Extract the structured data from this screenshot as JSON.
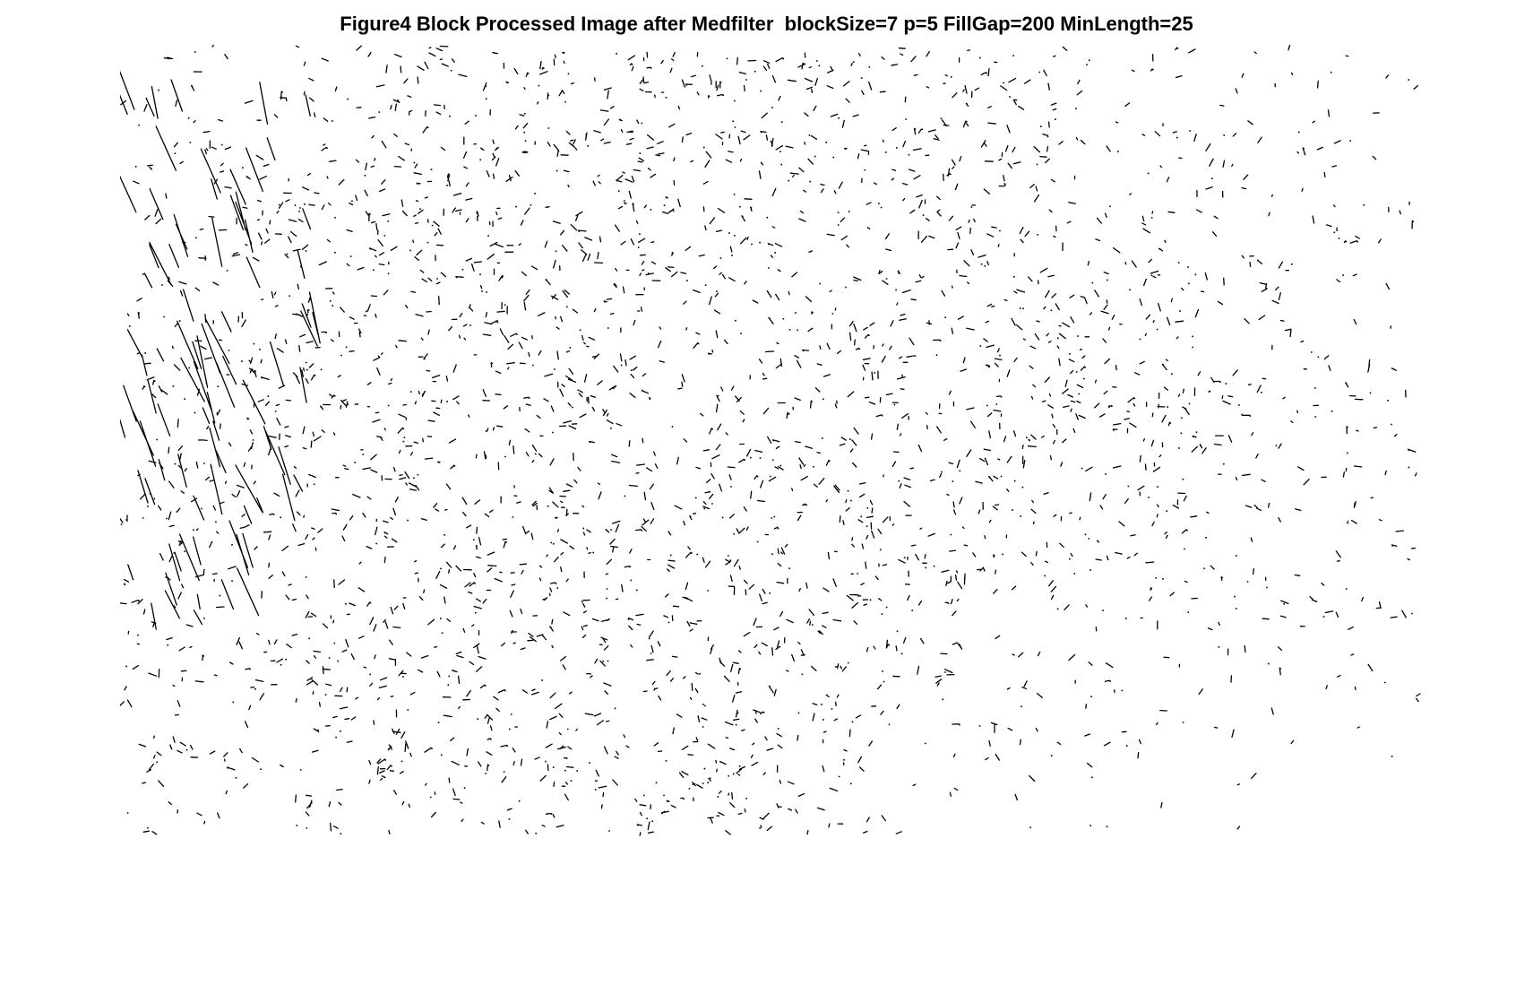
{
  "figure": {
    "title": "Figure4 Block Processed Image after Medfilter  blockSize=7 p=5 FillGap=200 MinLength=25"
  },
  "image": {
    "content": "binary-edge-map",
    "background_color": "#ffffff",
    "stroke_color": "#000000"
  }
}
